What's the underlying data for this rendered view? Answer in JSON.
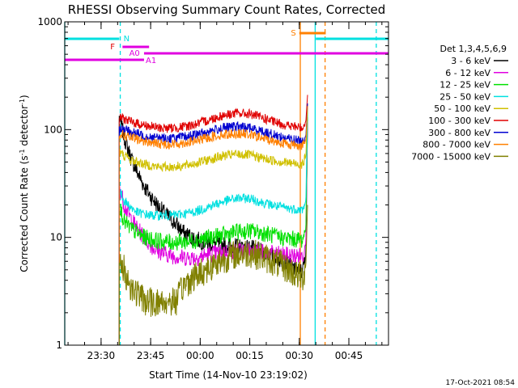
{
  "chart_data": {
    "type": "line",
    "title": "RHESSI Observing Summary Count Rates, Corrected",
    "xlabel": "Start Time (14-Nov-10 23:19:02)",
    "ylabel_parts": [
      "Corrected Count Rate (s",
      "-1",
      " detector",
      "-1",
      ")"
    ],
    "y_scale": "log",
    "ylim": [
      1,
      1000
    ],
    "y_ticks": [
      {
        "value": 1,
        "label": "1"
      },
      {
        "value": 10,
        "label": "10"
      },
      {
        "value": 100,
        "label": "100"
      },
      {
        "value": 1000,
        "label": "1000"
      }
    ],
    "x_ticks": [
      "23:30",
      "23:45",
      "00:00",
      "00:15",
      "00:30",
      "00:45"
    ],
    "x_tick_minutes": [
      11,
      26,
      41,
      56,
      71,
      86
    ],
    "xlim_minutes": [
      0,
      98
    ],
    "data_start_minute": 16.5,
    "data_end_minute": 73.5,
    "legend_title": "Det 1,3,4,5,6,9",
    "grid": false,
    "legend_placement": "right",
    "series": [
      {
        "name": "3 - 6 keV",
        "color": "#000000",
        "key": [
          [
            16.5,
            130
          ],
          [
            18,
            85
          ],
          [
            20,
            55
          ],
          [
            22,
            40
          ],
          [
            24,
            30
          ],
          [
            26,
            24
          ],
          [
            28,
            20
          ],
          [
            30,
            17
          ],
          [
            33,
            14
          ],
          [
            36,
            11
          ],
          [
            40,
            9.5
          ],
          [
            44,
            8.8
          ],
          [
            48,
            8.5
          ],
          [
            52,
            8.2
          ],
          [
            56,
            8
          ],
          [
            60,
            7.3
          ],
          [
            64,
            6.5
          ],
          [
            67,
            5.8
          ],
          [
            70,
            5
          ],
          [
            72,
            4.8
          ],
          [
            73,
            7
          ],
          [
            73.5,
            130
          ]
        ]
      },
      {
        "name": "6 - 12 keV",
        "color": "#e000e0",
        "key": [
          [
            16.5,
            30
          ],
          [
            18,
            20
          ],
          [
            20,
            15
          ],
          [
            22,
            12
          ],
          [
            24,
            10
          ],
          [
            26,
            8.5
          ],
          [
            28,
            7.5
          ],
          [
            32,
            6.8
          ],
          [
            36,
            6.5
          ],
          [
            40,
            6.5
          ],
          [
            44,
            7
          ],
          [
            48,
            7.3
          ],
          [
            52,
            7.5
          ],
          [
            56,
            7.6
          ],
          [
            60,
            7.3
          ],
          [
            64,
            7
          ],
          [
            68,
            6.8
          ],
          [
            72,
            6.7
          ],
          [
            73,
            9
          ],
          [
            73.5,
            120
          ]
        ]
      },
      {
        "name": "12 - 25 keV",
        "color": "#00e000",
        "key": [
          [
            16.5,
            20
          ],
          [
            18,
            14
          ],
          [
            20,
            12
          ],
          [
            22,
            11
          ],
          [
            24,
            10
          ],
          [
            28,
            9.3
          ],
          [
            32,
            9
          ],
          [
            36,
            9.1
          ],
          [
            40,
            9.4
          ],
          [
            44,
            10
          ],
          [
            48,
            10.5
          ],
          [
            52,
            11.2
          ],
          [
            56,
            11.5
          ],
          [
            60,
            11
          ],
          [
            64,
            10.2
          ],
          [
            68,
            9.7
          ],
          [
            72,
            9.5
          ],
          [
            73,
            12
          ],
          [
            73.5,
            150
          ]
        ]
      },
      {
        "name": "25 - 50 keV",
        "color": "#00e0e0",
        "key": [
          [
            16.5,
            27
          ],
          [
            18,
            22
          ],
          [
            20,
            19
          ],
          [
            22,
            17
          ],
          [
            26,
            16
          ],
          [
            32,
            16
          ],
          [
            36,
            16.5
          ],
          [
            40,
            17.5
          ],
          [
            44,
            19.5
          ],
          [
            48,
            21.5
          ],
          [
            52,
            23
          ],
          [
            56,
            23
          ],
          [
            60,
            21
          ],
          [
            64,
            19.5
          ],
          [
            68,
            18.5
          ],
          [
            72,
            18
          ],
          [
            73,
            22
          ],
          [
            73.5,
            160
          ]
        ]
      },
      {
        "name": "50 - 100 keV",
        "color": "#d0c000",
        "key": [
          [
            16.5,
            62
          ],
          [
            20,
            52
          ],
          [
            24,
            48
          ],
          [
            28,
            45
          ],
          [
            32,
            45
          ],
          [
            36,
            46
          ],
          [
            40,
            49
          ],
          [
            44,
            53
          ],
          [
            48,
            57
          ],
          [
            52,
            59
          ],
          [
            56,
            58
          ],
          [
            60,
            54
          ],
          [
            64,
            51
          ],
          [
            68,
            49
          ],
          [
            72,
            48
          ],
          [
            73,
            56
          ],
          [
            73.5,
            170
          ]
        ]
      },
      {
        "name": "100 - 300 keV",
        "color": "#e00000",
        "key": [
          [
            16.5,
            132
          ],
          [
            20,
            118
          ],
          [
            24,
            110
          ],
          [
            28,
            104
          ],
          [
            32,
            103
          ],
          [
            36,
            106
          ],
          [
            40,
            113
          ],
          [
            44,
            124
          ],
          [
            48,
            136
          ],
          [
            52,
            142
          ],
          [
            56,
            140
          ],
          [
            60,
            128
          ],
          [
            64,
            116
          ],
          [
            68,
            108
          ],
          [
            72,
            104
          ],
          [
            73,
            120
          ],
          [
            73.5,
            210
          ]
        ]
      },
      {
        "name": "300 - 800 keV",
        "color": "#0000d0",
        "key": [
          [
            16.5,
            104
          ],
          [
            20,
            95
          ],
          [
            24,
            88
          ],
          [
            28,
            84
          ],
          [
            32,
            83
          ],
          [
            36,
            85
          ],
          [
            40,
            90
          ],
          [
            44,
            97
          ],
          [
            48,
            104
          ],
          [
            52,
            107
          ],
          [
            56,
            104
          ],
          [
            60,
            96
          ],
          [
            64,
            88
          ],
          [
            68,
            82
          ],
          [
            72,
            78
          ],
          [
            73,
            88
          ],
          [
            73.5,
            175
          ]
        ]
      },
      {
        "name": "800 - 7000 keV",
        "color": "#ff8000",
        "key": [
          [
            16.5,
            92
          ],
          [
            20,
            84
          ],
          [
            24,
            78
          ],
          [
            28,
            74
          ],
          [
            32,
            73
          ],
          [
            36,
            75
          ],
          [
            40,
            79
          ],
          [
            44,
            85
          ],
          [
            48,
            90
          ],
          [
            52,
            92
          ],
          [
            56,
            90
          ],
          [
            60,
            83
          ],
          [
            64,
            77
          ],
          [
            68,
            73
          ],
          [
            72,
            71
          ],
          [
            73,
            80
          ],
          [
            73.5,
            165
          ]
        ]
      },
      {
        "name": "7000 - 15000 keV",
        "color": "#808000",
        "key": [
          [
            16.5,
            5.5
          ],
          [
            18,
            5
          ],
          [
            19,
            4
          ],
          [
            20,
            3.5
          ],
          [
            22,
            3
          ],
          [
            24,
            2.6
          ],
          [
            26,
            2.5
          ],
          [
            30,
            2.5
          ],
          [
            34,
            2.6
          ],
          [
            36,
            3.6
          ],
          [
            40,
            4.5
          ],
          [
            44,
            5.3
          ],
          [
            48,
            6.3
          ],
          [
            52,
            7
          ],
          [
            56,
            7.2
          ],
          [
            60,
            6.6
          ],
          [
            64,
            5.8
          ],
          [
            68,
            5
          ],
          [
            70,
            4.5
          ],
          [
            72,
            4.2
          ],
          [
            73,
            5.5
          ],
          [
            73.5,
            20
          ]
        ]
      }
    ],
    "attenuator_state_bars": [
      {
        "label": "N",
        "color": "#00e0e0",
        "start_minute": 0,
        "end_minute": 16.5
      },
      {
        "label": "N",
        "color": "#00e0e0",
        "start_minute": 76,
        "end_minute": 98
      },
      {
        "label": "F",
        "color": "#e00000",
        "start_minute": 17.5,
        "end_minute": 25.5
      },
      {
        "label": "A0",
        "color": "#e000e0",
        "start_minute": 17.5,
        "end_minute": 25.5
      },
      {
        "label": "A1",
        "color": "#e000e0",
        "start_minute": 0,
        "end_minute": 24
      },
      {
        "label": "",
        "color": "#e000e0",
        "start_minute": 24,
        "end_minute": 98
      },
      {
        "label": "S",
        "color": "#ff8000",
        "start_minute": 71,
        "end_minute": 79
      }
    ],
    "vertical_markers": [
      {
        "minute": 0,
        "color": "#00e0e0",
        "style": "solid"
      },
      {
        "minute": 16.8,
        "color": "#00e0e0",
        "style": "dashed"
      },
      {
        "minute": 71.3,
        "color": "#ff8000",
        "style": "solid"
      },
      {
        "minute": 75.8,
        "color": "#00e0e0",
        "style": "solid"
      },
      {
        "minute": 78.8,
        "color": "#ff8000",
        "style": "dashed"
      },
      {
        "minute": 94.3,
        "color": "#00e0e0",
        "style": "dashed"
      }
    ]
  },
  "footer": {
    "timestamp": "17-Oct-2021 08:54"
  }
}
